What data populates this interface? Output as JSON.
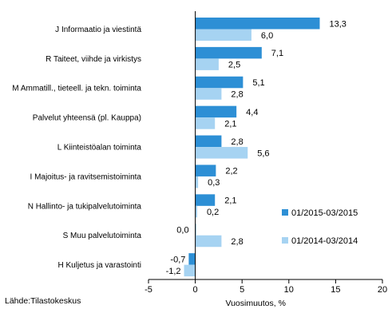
{
  "chart_data": {
    "type": "bar",
    "orientation": "horizontal",
    "categories": [
      "J Informaatio ja viestintä",
      "R Taiteet, viihde ja virkistys",
      "M Ammatill., tieteell. ja tekn. toiminta",
      "Palvelut yhteensä (pl. Kauppa)",
      "L Kiinteistöalan toiminta",
      "I Majoitus- ja ravitsemistoiminta",
      "N Hallinto- ja tukipalvelutoiminta",
      "S Muu palvelutoiminta",
      "H Kuljetus ja varastointi"
    ],
    "series": [
      {
        "name": "01/2015-03/2015",
        "color": "#2d8fd5",
        "values": [
          13.3,
          7.1,
          5.1,
          4.4,
          2.8,
          2.2,
          2.1,
          0.0,
          -0.7
        ],
        "labels": [
          "13,3",
          "7,1",
          "5,1",
          "4,4",
          "2,8",
          "2,2",
          "2,1",
          "0,0",
          "-0,7"
        ]
      },
      {
        "name": "01/2014-03/2014",
        "color": "#a6d3f2",
        "values": [
          6.0,
          2.5,
          2.8,
          2.1,
          5.6,
          0.3,
          0.2,
          2.8,
          -1.2
        ],
        "labels": [
          "6,0",
          "2,5",
          "2,8",
          "2,1",
          "5,6",
          "0,3",
          "0,2",
          "2,8",
          "-1,2"
        ]
      }
    ],
    "xlim": [
      -5,
      20
    ],
    "xticks": [
      -5,
      0,
      5,
      10,
      15,
      20
    ],
    "xlabel": "Vuosimuutos, %",
    "title": "",
    "legend_position": "right",
    "grid": false
  },
  "source": "Lähde:Tilastokeskus"
}
